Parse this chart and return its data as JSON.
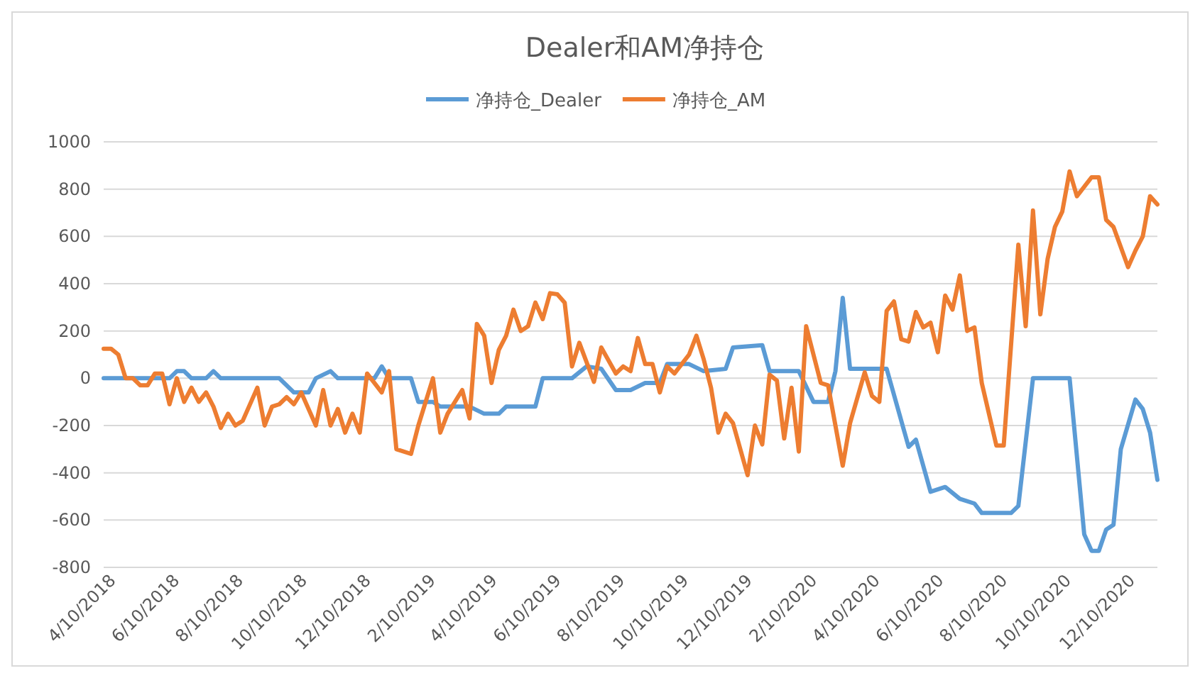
{
  "chart_data": {
    "type": "line",
    "title": "Dealer和AM净持仓",
    "legend": "top",
    "grid": "y",
    "line_style": "solid",
    "marker": "none",
    "ylim": [
      -800,
      1000
    ],
    "yticks": [
      -800,
      -600,
      -400,
      -200,
      0,
      200,
      400,
      600,
      800,
      1000
    ],
    "xlim": [
      "2018-04-03",
      "2021-01-05"
    ],
    "xticks": [
      {
        "value": "2018-04-10",
        "label": "4/10/2018"
      },
      {
        "value": "2018-06-10",
        "label": "6/10/2018"
      },
      {
        "value": "2018-08-10",
        "label": "8/10/2018"
      },
      {
        "value": "2018-10-10",
        "label": "10/10/2018"
      },
      {
        "value": "2018-12-10",
        "label": "12/10/2018"
      },
      {
        "value": "2019-02-10",
        "label": "2/10/2019"
      },
      {
        "value": "2019-04-10",
        "label": "4/10/2019"
      },
      {
        "value": "2019-06-10",
        "label": "6/10/2019"
      },
      {
        "value": "2019-08-10",
        "label": "8/10/2019"
      },
      {
        "value": "2019-10-10",
        "label": "10/10/2019"
      },
      {
        "value": "2019-12-10",
        "label": "12/10/2019"
      },
      {
        "value": "2020-02-10",
        "label": "2/10/2020"
      },
      {
        "value": "2020-04-10",
        "label": "4/10/2020"
      },
      {
        "value": "2020-06-10",
        "label": "6/10/2020"
      },
      {
        "value": "2020-08-10",
        "label": "8/10/2020"
      },
      {
        "value": "2020-10-10",
        "label": "10/10/2020"
      },
      {
        "value": "2020-12-10",
        "label": "12/10/2020"
      }
    ],
    "series": [
      {
        "name": "净持仓_Dealer",
        "color": "#5b9bd5",
        "x": [
          "2018-04-03",
          "2018-06-05",
          "2018-06-12",
          "2018-06-19",
          "2018-06-26",
          "2018-07-10",
          "2018-07-17",
          "2018-07-24",
          "2018-09-18",
          "2018-10-02",
          "2018-10-16",
          "2018-10-23",
          "2018-11-06",
          "2018-11-13",
          "2018-12-18",
          "2018-12-25",
          "2019-01-01",
          "2019-01-22",
          "2019-01-29",
          "2019-02-12",
          "2019-02-19",
          "2019-03-19",
          "2019-04-02",
          "2019-04-16",
          "2019-04-23",
          "2019-05-21",
          "2019-05-28",
          "2019-06-25",
          "2019-07-09",
          "2019-07-23",
          "2019-08-06",
          "2019-08-20",
          "2019-09-03",
          "2019-09-17",
          "2019-09-24",
          "2019-10-15",
          "2019-10-29",
          "2019-11-19",
          "2019-11-26",
          "2019-12-24",
          "2019-12-31",
          "2020-01-28",
          "2020-02-11",
          "2020-02-25",
          "2020-03-03",
          "2020-03-10",
          "2020-03-17",
          "2020-04-21",
          "2020-05-12",
          "2020-05-19",
          "2020-06-02",
          "2020-06-16",
          "2020-06-30",
          "2020-07-14",
          "2020-07-21",
          "2020-08-18",
          "2020-08-25",
          "2020-09-08",
          "2020-10-13",
          "2020-10-27",
          "2020-11-03",
          "2020-11-10",
          "2020-11-17",
          "2020-11-24",
          "2020-12-01",
          "2020-12-15",
          "2020-12-22",
          "2020-12-29",
          "2021-01-05"
        ],
        "values": [
          0,
          0,
          30,
          30,
          0,
          0,
          30,
          0,
          0,
          -60,
          -60,
          0,
          30,
          0,
          0,
          50,
          0,
          0,
          -100,
          -100,
          -120,
          -120,
          -150,
          -150,
          -120,
          -120,
          0,
          0,
          50,
          40,
          -50,
          -50,
          -20,
          -20,
          60,
          60,
          30,
          40,
          130,
          140,
          30,
          30,
          -100,
          -100,
          30,
          340,
          40,
          40,
          -290,
          -260,
          -480,
          -460,
          -510,
          -530,
          -570,
          -570,
          -540,
          0,
          0,
          -660,
          -730,
          -730,
          -640,
          -620,
          -300,
          -90,
          -130,
          -230,
          -430
        ]
      },
      {
        "name": "净持仓_AM",
        "color": "#ed7d31",
        "x": [
          "2018-04-03",
          "2018-04-10",
          "2018-04-17",
          "2018-04-24",
          "2018-05-01",
          "2018-05-08",
          "2018-05-15",
          "2018-05-22",
          "2018-05-29",
          "2018-06-05",
          "2018-06-12",
          "2018-06-19",
          "2018-06-26",
          "2018-07-03",
          "2018-07-10",
          "2018-07-17",
          "2018-07-24",
          "2018-07-31",
          "2018-08-07",
          "2018-08-14",
          "2018-08-28",
          "2018-09-04",
          "2018-09-11",
          "2018-09-18",
          "2018-09-25",
          "2018-10-02",
          "2018-10-09",
          "2018-10-23",
          "2018-10-30",
          "2018-11-06",
          "2018-11-13",
          "2018-11-20",
          "2018-11-27",
          "2018-12-04",
          "2018-12-11",
          "2018-12-25",
          "2019-01-01",
          "2019-01-08",
          "2019-01-22",
          "2019-01-29",
          "2019-02-12",
          "2019-02-19",
          "2019-02-26",
          "2019-03-12",
          "2019-03-19",
          "2019-03-26",
          "2019-04-02",
          "2019-04-09",
          "2019-04-16",
          "2019-04-23",
          "2019-04-30",
          "2019-05-07",
          "2019-05-14",
          "2019-05-21",
          "2019-05-28",
          "2019-06-04",
          "2019-06-11",
          "2019-06-18",
          "2019-06-25",
          "2019-07-02",
          "2019-07-16",
          "2019-07-23",
          "2019-08-06",
          "2019-08-13",
          "2019-08-20",
          "2019-08-27",
          "2019-09-03",
          "2019-09-10",
          "2019-09-17",
          "2019-09-24",
          "2019-10-01",
          "2019-10-15",
          "2019-10-22",
          "2019-10-29",
          "2019-11-05",
          "2019-11-12",
          "2019-11-19",
          "2019-11-26",
          "2019-12-10",
          "2019-12-17",
          "2019-12-24",
          "2019-12-31",
          "2020-01-07",
          "2020-01-14",
          "2020-01-21",
          "2020-01-28",
          "2020-02-04",
          "2020-02-18",
          "2020-02-25",
          "2020-03-10",
          "2020-03-17",
          "2020-03-31",
          "2020-04-07",
          "2020-04-14",
          "2020-04-21",
          "2020-04-28",
          "2020-05-05",
          "2020-05-12",
          "2020-05-19",
          "2020-05-26",
          "2020-06-02",
          "2020-06-09",
          "2020-06-16",
          "2020-06-23",
          "2020-06-30",
          "2020-07-07",
          "2020-07-14",
          "2020-07-21",
          "2020-08-04",
          "2020-08-11",
          "2020-08-25",
          "2020-09-01",
          "2020-09-08",
          "2020-09-15",
          "2020-09-22",
          "2020-09-29",
          "2020-10-06",
          "2020-10-13",
          "2020-10-20",
          "2020-11-03",
          "2020-11-10",
          "2020-11-17",
          "2020-11-24",
          "2020-12-08",
          "2020-12-15",
          "2020-12-22",
          "2020-12-29",
          "2021-01-05"
        ],
        "values": [
          125,
          125,
          100,
          0,
          0,
          -30,
          -30,
          20,
          20,
          -110,
          0,
          -100,
          -40,
          -100,
          -60,
          -120,
          -210,
          -150,
          -200,
          -180,
          -40,
          -200,
          -120,
          -110,
          -80,
          -110,
          -60,
          -200,
          -50,
          -200,
          -130,
          -230,
          -150,
          -230,
          20,
          -60,
          30,
          -300,
          -320,
          -200,
          0,
          -230,
          -150,
          -50,
          -170,
          230,
          180,
          -20,
          120,
          180,
          290,
          200,
          220,
          320,
          250,
          360,
          355,
          320,
          50,
          150,
          -15,
          130,
          20,
          50,
          30,
          170,
          60,
          60,
          -60,
          50,
          20,
          100,
          180,
          80,
          -40,
          -230,
          -150,
          -190,
          -410,
          -200,
          -280,
          15,
          -10,
          -255,
          -40,
          -310,
          220,
          -20,
          -30,
          -370,
          -190,
          25,
          -75,
          -100,
          285,
          325,
          165,
          155,
          280,
          215,
          235,
          110,
          350,
          290,
          435,
          200,
          215,
          -20,
          -285,
          -285,
          565,
          220,
          710,
          270,
          505,
          640,
          705,
          875,
          770,
          850,
          850,
          670,
          640,
          470,
          540,
          600,
          770,
          735
        ]
      }
    ]
  }
}
